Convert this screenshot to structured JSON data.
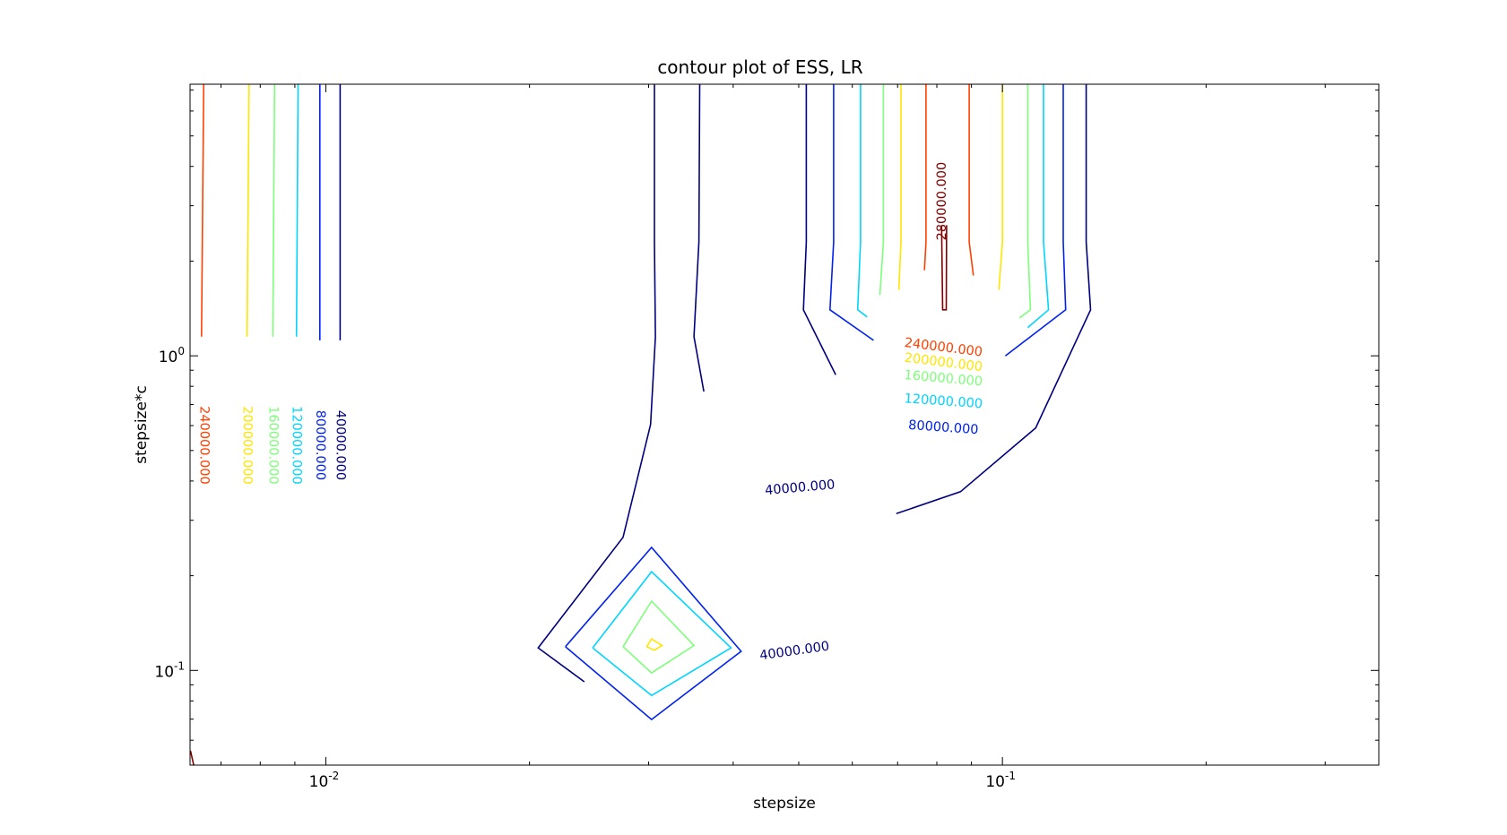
{
  "chart_data": {
    "type": "contour",
    "title": "contour plot of ESS, LR",
    "xlabel": "stepsize",
    "ylabel": "stepsize*c",
    "xscale": "log",
    "yscale": "log",
    "xlim": [
      0.0063,
      0.36
    ],
    "ylim": [
      0.05,
      7.3
    ],
    "xticks": [
      {
        "value": 0.01,
        "base": "10",
        "exp": "-2"
      },
      {
        "value": 0.1,
        "base": "10",
        "exp": "-1"
      }
    ],
    "yticks": [
      {
        "value": 1.0,
        "base": "10",
        "exp": "0"
      },
      {
        "value": 0.1,
        "base": "10",
        "exp": "-1"
      }
    ],
    "colors": {
      "40000": "#00007f",
      "80000": "#0022ee",
      "120000": "#00d5ff",
      "160000": "#7dff7a",
      "200000": "#ffe500",
      "240000": "#ff4000",
      "280000": "#7f0000"
    },
    "contours": [
      {
        "level": "40000",
        "points": [
          [
            0.0105,
            7.3
          ],
          [
            0.0105,
            1.12
          ]
        ]
      },
      {
        "level": "80000",
        "points": [
          [
            0.0098,
            7.3
          ],
          [
            0.0098,
            1.12
          ]
        ]
      },
      {
        "level": "120000",
        "points": [
          [
            0.0091,
            7.3
          ],
          [
            0.00905,
            1.15
          ]
        ]
      },
      {
        "level": "160000",
        "points": [
          [
            0.0084,
            7.3
          ],
          [
            0.00835,
            1.15
          ]
        ]
      },
      {
        "level": "200000",
        "points": [
          [
            0.0077,
            7.3
          ],
          [
            0.00765,
            1.15
          ]
        ]
      },
      {
        "level": "240000",
        "points": [
          [
            0.0066,
            7.3
          ],
          [
            0.00655,
            1.15
          ]
        ]
      },
      {
        "level": "280000",
        "points": [
          [
            0.00631,
            0.0555
          ],
          [
            0.00638,
            0.05
          ]
        ]
      },
      {
        "level": "40000",
        "points": [
          [
            0.0357,
            7.3
          ],
          [
            0.0356,
            2.3
          ],
          [
            0.035,
            1.15
          ],
          [
            0.0362,
            0.77
          ]
        ]
      },
      {
        "level": "40000",
        "points": [
          [
            0.0306,
            7.3
          ],
          [
            0.0306,
            2.3
          ],
          [
            0.0307,
            1.15
          ],
          [
            0.0302,
            0.605
          ],
          [
            0.0275,
            0.265
          ],
          [
            0.0206,
            0.118
          ],
          [
            0.0241,
            0.092
          ]
        ]
      },
      {
        "level": "80000",
        "points": [
          [
            0.0226,
            0.119
          ],
          [
            0.0303,
            0.246
          ],
          [
            0.0411,
            0.115
          ],
          [
            0.0303,
            0.0698
          ],
          [
            0.0226,
            0.119
          ]
        ]
      },
      {
        "level": "120000",
        "points": [
          [
            0.0248,
            0.118
          ],
          [
            0.0303,
            0.206
          ],
          [
            0.0397,
            0.118
          ],
          [
            0.0303,
            0.0832
          ],
          [
            0.0248,
            0.118
          ]
        ]
      },
      {
        "level": "160000",
        "points": [
          [
            0.0275,
            0.119
          ],
          [
            0.0303,
            0.166
          ],
          [
            0.035,
            0.12
          ],
          [
            0.0303,
            0.0982
          ],
          [
            0.0275,
            0.119
          ]
        ]
      },
      {
        "level": "200000",
        "points": [
          [
            0.0298,
            0.119
          ],
          [
            0.0303,
            0.126
          ],
          [
            0.0314,
            0.12
          ],
          [
            0.0306,
            0.116
          ],
          [
            0.0298,
            0.119
          ]
        ]
      },
      {
        "level": "40000",
        "points": [
          [
            0.0513,
            7.3
          ],
          [
            0.0513,
            2.3
          ],
          [
            0.0508,
            1.4
          ],
          [
            0.0567,
            0.87
          ]
        ]
      },
      {
        "level": "40000",
        "points": [
          [
            0.133,
            7.3
          ],
          [
            0.133,
            2.3
          ],
          [
            0.135,
            1.4
          ],
          [
            0.112,
            0.59
          ],
          [
            0.0867,
            0.37
          ],
          [
            0.0697,
            0.315
          ]
        ]
      },
      {
        "level": "80000",
        "points": [
          [
            0.0563,
            7.3
          ],
          [
            0.0563,
            2.3
          ],
          [
            0.0556,
            1.4
          ],
          [
            0.0645,
            1.12
          ]
        ]
      },
      {
        "level": "80000",
        "points": [
          [
            0.123,
            7.3
          ],
          [
            0.123,
            2.3
          ],
          [
            0.124,
            1.4
          ],
          [
            0.101,
            1.0
          ]
        ]
      },
      {
        "level": "120000",
        "points": [
          [
            0.0617,
            7.3
          ],
          [
            0.0617,
            2.3
          ],
          [
            0.0611,
            1.4
          ],
          [
            0.0631,
            1.33
          ]
        ]
      },
      {
        "level": "120000",
        "points": [
          [
            0.115,
            7.3
          ],
          [
            0.115,
            2.3
          ],
          [
            0.117,
            1.4
          ],
          [
            0.109,
            1.23
          ]
        ]
      },
      {
        "level": "160000",
        "points": [
          [
            0.0667,
            7.3
          ],
          [
            0.0667,
            2.3
          ],
          [
            0.0659,
            1.56
          ]
        ]
      },
      {
        "level": "160000",
        "points": [
          [
            0.109,
            7.3
          ],
          [
            0.109,
            2.3
          ],
          [
            0.11,
            1.4
          ],
          [
            0.106,
            1.32
          ]
        ]
      },
      {
        "level": "200000",
        "points": [
          [
            0.0708,
            7.3
          ],
          [
            0.0708,
            2.3
          ],
          [
            0.0703,
            1.62
          ]
        ]
      },
      {
        "level": "200000",
        "points": [
          [
            0.1,
            7.3
          ],
          [
            0.1,
            2.3
          ],
          [
            0.0988,
            1.62
          ]
        ]
      },
      {
        "level": "240000",
        "points": [
          [
            0.0771,
            7.3
          ],
          [
            0.0771,
            2.3
          ],
          [
            0.0767,
            1.87
          ]
        ]
      },
      {
        "level": "240000",
        "points": [
          [
            0.0893,
            7.3
          ],
          [
            0.0893,
            2.3
          ],
          [
            0.0906,
            1.8
          ]
        ]
      },
      {
        "level": "280000",
        "points": [
          [
            0.0813,
            2.6
          ],
          [
            0.0816,
            1.4
          ],
          [
            0.0826,
            1.4
          ],
          [
            0.0827,
            2.6
          ]
        ]
      }
    ],
    "contour_labels": [
      {
        "text": "240000.000",
        "level": "240000",
        "x": 0.00661,
        "y": 0.52,
        "angle": 90
      },
      {
        "text": "200000.000",
        "level": "200000",
        "x": 0.00765,
        "y": 0.52,
        "angle": 90
      },
      {
        "text": "160000.000",
        "level": "160000",
        "x": 0.00835,
        "y": 0.52,
        "angle": 90
      },
      {
        "text": "120000.000",
        "level": "120000",
        "x": 0.00905,
        "y": 0.52,
        "angle": 90
      },
      {
        "text": "80000.000",
        "level": "80000",
        "x": 0.0098,
        "y": 0.52,
        "angle": 90
      },
      {
        "text": "40000.000",
        "level": "40000",
        "x": 0.0105,
        "y": 0.52,
        "angle": 90
      },
      {
        "text": "280000.000",
        "level": "280000",
        "x": 0.0815,
        "y": 3.1,
        "angle": -90
      },
      {
        "text": "240000.000",
        "level": "240000",
        "x": 0.0818,
        "y": 1.06,
        "angle": 7
      },
      {
        "text": "200000.000",
        "level": "200000",
        "x": 0.0818,
        "y": 0.95,
        "angle": 7
      },
      {
        "text": "160000.000",
        "level": "160000",
        "x": 0.0818,
        "y": 0.845,
        "angle": 5
      },
      {
        "text": "120000.000",
        "level": "120000",
        "x": 0.0818,
        "y": 0.715,
        "angle": 4
      },
      {
        "text": "80000.000",
        "level": "80000",
        "x": 0.0818,
        "y": 0.59,
        "angle": 4
      },
      {
        "text": "40000.000",
        "level": "40000",
        "x": 0.0502,
        "y": 0.38,
        "angle": -5
      },
      {
        "text": "40000.000",
        "level": "40000",
        "x": 0.0493,
        "y": 0.115,
        "angle": -8
      }
    ]
  }
}
